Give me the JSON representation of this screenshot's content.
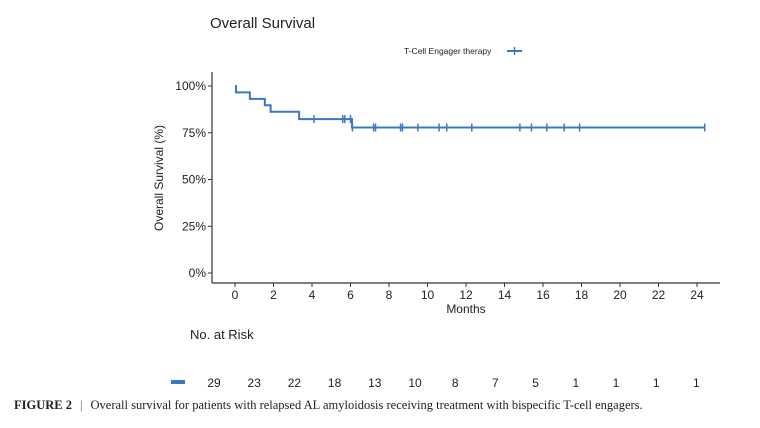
{
  "chart_data": {
    "type": "line",
    "subtype": "kaplan-meier step",
    "title": "Overall Survival",
    "xlabel": "Months",
    "ylabel": "Overall Survival (%)",
    "xlim": [
      -1,
      25
    ],
    "ylim": [
      0,
      100
    ],
    "xticks": [
      "0",
      "2",
      "4",
      "6",
      "8",
      "10",
      "12",
      "14",
      "16",
      "18",
      "20",
      "22",
      "24"
    ],
    "yticks": [
      "0%",
      "25%",
      "50%",
      "75%",
      "100%"
    ],
    "grid": false,
    "legend_position": "top-right",
    "color": "#3a78c3",
    "series": [
      {
        "name": "T-Cell Engager therapy",
        "steps": [
          [
            0,
            100
          ],
          [
            0.05,
            96.6
          ],
          [
            0.77,
            93.1
          ],
          [
            1.55,
            89.7
          ],
          [
            1.85,
            86.2
          ],
          [
            3.33,
            82.3
          ],
          [
            6.08,
            77.8
          ],
          [
            24.4,
            77.8
          ]
        ],
        "censored_months": [
          4.1,
          5.6,
          5.7,
          6.0,
          6.1,
          7.2,
          7.3,
          8.6,
          8.7,
          9.5,
          10.6,
          11.0,
          12.3,
          14.8,
          15.4,
          16.2,
          17.1,
          17.9,
          24.4
        ]
      }
    ],
    "risk_table": {
      "title": "No. at Risk",
      "values": [
        "29",
        "23",
        "22",
        "18",
        "13",
        "10",
        "8",
        "7",
        "5",
        "1",
        "1",
        "1",
        "1"
      ]
    }
  },
  "caption": {
    "label": "FIGURE 2",
    "separator": "|",
    "text": "Overall survival for patients with relapsed AL amyloidosis receiving treatment with bispecific T-cell engagers."
  }
}
